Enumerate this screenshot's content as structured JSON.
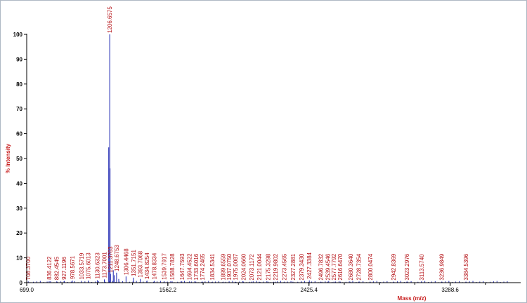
{
  "chart_data": {
    "type": "bar",
    "xlabel": "Mass (m/z)",
    "ylabel": "% Intensity",
    "xlim": [
      699.0,
      3720.0
    ],
    "ylim": [
      0,
      100
    ],
    "x_ticks": [
      "699.0",
      "1562.2",
      "2425.4",
      "3288.6"
    ],
    "x_tick_values": [
      699.0,
      1562.2,
      2425.4,
      3288.6
    ],
    "y_ticks": [
      0,
      10,
      20,
      30,
      40,
      50,
      60,
      70,
      80,
      90,
      100
    ],
    "colors": {
      "spectrum": "#1a23b0",
      "label": "#b40f14",
      "axis": "#000000"
    },
    "peaks": [
      {
        "mz": 708.37,
        "intensity": 0.5,
        "label": "708.3700"
      },
      {
        "mz": 836.4122,
        "intensity": 0.6,
        "label": "836.4122"
      },
      {
        "mz": 882.4545,
        "intensity": 0.5,
        "label": "882.4545"
      },
      {
        "mz": 927.1196,
        "intensity": 0.6,
        "label": "927.1196"
      },
      {
        "mz": 978.5671,
        "intensity": 0.8,
        "label": "978.5671"
      },
      {
        "mz": 1033.5719,
        "intensity": 0.7,
        "label": "1033.5719"
      },
      {
        "mz": 1075.6013,
        "intensity": 0.8,
        "label": "1075.6013"
      },
      {
        "mz": 1130.6323,
        "intensity": 1.0,
        "label": "1130.6323"
      },
      {
        "mz": 1173.7001,
        "intensity": 1.3,
        "label": "1173.7001"
      },
      {
        "mz": 1206.6575,
        "intensity": 100,
        "label": "1206.6575"
      },
      {
        "mz": 1200.6,
        "intensity": 54.5,
        "label": ""
      },
      {
        "mz": 1208.7,
        "intensity": 46,
        "label": ""
      },
      {
        "mz": 1211.3763,
        "intensity": 3.5,
        "label": "1211.3763"
      },
      {
        "mz": 1228.5,
        "intensity": 5.0,
        "label": ""
      },
      {
        "mz": 1234.0,
        "intensity": 3.0,
        "label": ""
      },
      {
        "mz": 1248.6753,
        "intensity": 4.0,
        "label": "1248.6753"
      },
      {
        "mz": 1262.0,
        "intensity": 1.5,
        "label": ""
      },
      {
        "mz": 1306.4468,
        "intensity": 2.5,
        "label": "1306.4468"
      },
      {
        "mz": 1351.7151,
        "intensity": 2.0,
        "label": "1351.7151"
      },
      {
        "mz": 1393.7068,
        "intensity": 1.5,
        "label": "1393.7068"
      },
      {
        "mz": 1434.8254,
        "intensity": 0.8,
        "label": "1434.8254"
      },
      {
        "mz": 1478.8334,
        "intensity": 0.7,
        "label": "1478.8334"
      },
      {
        "mz": 1539.7917,
        "intensity": 0.6,
        "label": "1539.7917"
      },
      {
        "mz": 1588.7828,
        "intensity": 0.5,
        "label": "1588.7828"
      },
      {
        "mz": 1647.7593,
        "intensity": 0.5,
        "label": "1647.7593"
      },
      {
        "mz": 1694.4522,
        "intensity": 0.5,
        "label": "1694.4522"
      },
      {
        "mz": 1733.6016,
        "intensity": 0.4,
        "label": "1733.6016"
      },
      {
        "mz": 1774.2465,
        "intensity": 0.4,
        "label": "1774.2465"
      },
      {
        "mz": 1834.5341,
        "intensity": 0.4,
        "label": "1834.5341"
      },
      {
        "mz": 1899.6559,
        "intensity": 0.4,
        "label": "1899.6559"
      },
      {
        "mz": 1937.075,
        "intensity": 0.4,
        "label": "1937.0750"
      },
      {
        "mz": 1975.0087,
        "intensity": 0.4,
        "label": "1975.0087"
      },
      {
        "mz": 2024.066,
        "intensity": 0.4,
        "label": "2024.0660"
      },
      {
        "mz": 2073.1172,
        "intensity": 0.4,
        "label": "2073.1172"
      },
      {
        "mz": 2121.0044,
        "intensity": 0.4,
        "label": "2121.0044"
      },
      {
        "mz": 2175.3298,
        "intensity": 0.4,
        "label": "2175.3298"
      },
      {
        "mz": 2219.9802,
        "intensity": 0.4,
        "label": "2219.9802"
      },
      {
        "mz": 2273.4565,
        "intensity": 0.4,
        "label": "2273.4565"
      },
      {
        "mz": 2327.2881,
        "intensity": 0.4,
        "label": "2327.2881"
      },
      {
        "mz": 2379.343,
        "intensity": 0.4,
        "label": "2379.3430"
      },
      {
        "mz": 2427.3384,
        "intensity": 0.9,
        "label": "2427.3384"
      },
      {
        "mz": 2496.7832,
        "intensity": 0.4,
        "label": "2496.7832"
      },
      {
        "mz": 2539.4546,
        "intensity": 0.4,
        "label": "2539.4546"
      },
      {
        "mz": 2577.7792,
        "intensity": 0.4,
        "label": "2577.7792"
      },
      {
        "mz": 2616.647,
        "intensity": 0.4,
        "label": "2616.6470"
      },
      {
        "mz": 2680.364,
        "intensity": 0.4,
        "label": "2680.3640"
      },
      {
        "mz": 2728.7354,
        "intensity": 0.4,
        "label": "2728.7354"
      },
      {
        "mz": 2800.0474,
        "intensity": 0.4,
        "label": "2800.0474"
      },
      {
        "mz": 2942.8369,
        "intensity": 0.4,
        "label": "2942.8369"
      },
      {
        "mz": 3023.2976,
        "intensity": 0.4,
        "label": "3023.2976"
      },
      {
        "mz": 3113.574,
        "intensity": 0.4,
        "label": "3113.5740"
      },
      {
        "mz": 3236.9849,
        "intensity": 0.4,
        "label": "3236.9849"
      },
      {
        "mz": 3384.5396,
        "intensity": 0.4,
        "label": "3384.5396"
      }
    ]
  }
}
